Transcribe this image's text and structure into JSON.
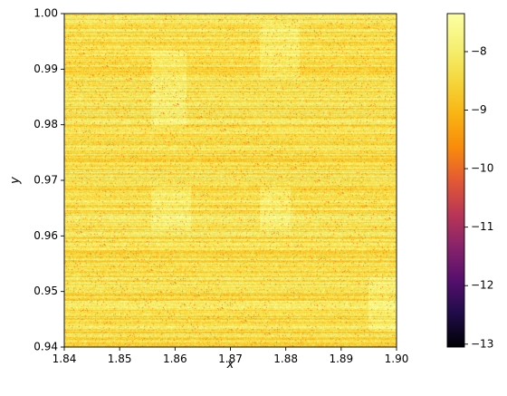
{
  "chart_data": {
    "type": "heatmap",
    "title": "",
    "xlabel": "x",
    "ylabel": "y",
    "xlim": [
      1.84,
      1.9
    ],
    "ylim": [
      0.94,
      1.0
    ],
    "xticks": [
      1.84,
      1.85,
      1.86,
      1.87,
      1.88,
      1.89,
      1.9
    ],
    "xtick_labels": [
      "1.84",
      "1.85",
      "1.86",
      "1.87",
      "1.88",
      "1.89",
      "1.90"
    ],
    "yticks": [
      0.94,
      0.95,
      0.96,
      0.97,
      0.98,
      0.99,
      1.0
    ],
    "ytick_labels": [
      "0.94",
      "0.95",
      "0.96",
      "0.97",
      "0.98",
      "0.99",
      "1.00"
    ],
    "colormap": "inferno",
    "colorbar": {
      "range": [
        -13.05,
        -7.35
      ],
      "ticks": [
        -13,
        -12,
        -11,
        -10,
        -9,
        -8
      ],
      "tick_labels": [
        "−13",
        "−12",
        "−11",
        "−10",
        "−9",
        "−8"
      ]
    },
    "grid": false,
    "typical_value_range": [
      -9.2,
      -7.4
    ]
  }
}
